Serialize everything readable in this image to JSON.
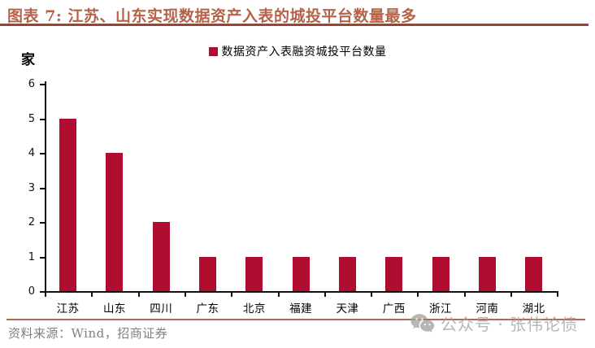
{
  "header": {
    "title": "图表 7: 江苏、山东实现数据资产入表的城投平台数量最多"
  },
  "legend": {
    "label": "数据资产入表融资城投平台数量"
  },
  "unit_label": "家",
  "source": {
    "text": "资料来源：Wind，招商证券"
  },
  "watermark": {
    "icon": "wechat-icon",
    "text": "公众号 · 张伟论债"
  },
  "chart_data": {
    "type": "bar",
    "title": "数据资产入表融资城投平台数量",
    "categories": [
      "江苏",
      "山东",
      "四川",
      "广东",
      "北京",
      "福建",
      "天津",
      "广西",
      "浙江",
      "河南",
      "湖北"
    ],
    "values": [
      5,
      4,
      2,
      1,
      1,
      1,
      1,
      1,
      1,
      1,
      1
    ],
    "xlabel": "",
    "ylabel": "家",
    "ylim": [
      0,
      6
    ],
    "ytick_step": 1,
    "grid": false,
    "legend_position": "top-center",
    "bar_color": "#B00C2F"
  },
  "colors": {
    "bar": "#B00C2F",
    "title": "#B5624A",
    "title-rule": "#9C4430",
    "source-rule": "#B26B4F",
    "axis": "#111111",
    "source-text": "#808080",
    "watermark": "#9e9e9e"
  }
}
